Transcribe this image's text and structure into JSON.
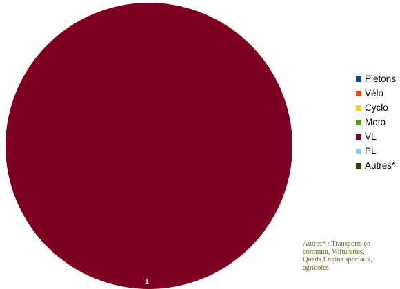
{
  "chart_data": {
    "type": "pie",
    "categories": [
      "Pietons",
      "Vélo",
      "Cyclo",
      "Moto",
      "VL",
      "PL",
      "Autres*"
    ],
    "values": [
      0,
      0,
      0,
      0,
      1,
      0,
      0
    ],
    "colors": [
      "#004586",
      "#ff420e",
      "#ffd320",
      "#579d1c",
      "#7e0021",
      "#83caff",
      "#314004"
    ],
    "data_labels": [
      "1"
    ],
    "legend_position": "right"
  },
  "footnote": "Autres* : Transports en commun,  Voiturettes, Quads,Engins spéciaux, agricoles"
}
